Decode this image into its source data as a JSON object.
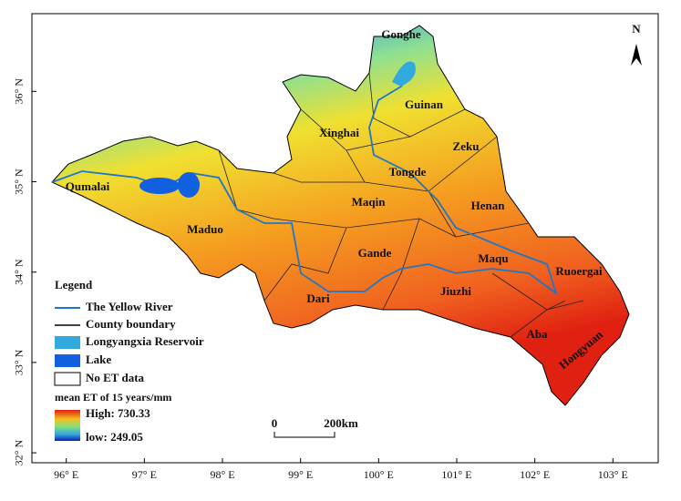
{
  "map": {
    "north": "N",
    "xlim": [
      95.56,
      103.58
    ],
    "ylim": [
      31.89,
      36.86
    ],
    "lon_ticks": [
      {
        "value": 96,
        "label": "96° E"
      },
      {
        "value": 97,
        "label": "97° E"
      },
      {
        "value": 98,
        "label": "98° E"
      },
      {
        "value": 99,
        "label": "99° E"
      },
      {
        "value": 100,
        "label": "100° E"
      },
      {
        "value": 101,
        "label": "101° E"
      },
      {
        "value": 102,
        "label": "102° E"
      },
      {
        "value": 103,
        "label": "103° E"
      }
    ],
    "lat_ticks": [
      {
        "value": 32,
        "label": "32° N"
      },
      {
        "value": 33,
        "label": "33° N"
      },
      {
        "value": 34,
        "label": "34° N"
      },
      {
        "value": 35,
        "label": "35° N"
      },
      {
        "value": 36,
        "label": "36° N"
      }
    ],
    "counties": [
      "Gonghe",
      "Guinan",
      "Xinghai",
      "Zeku",
      "Tongde",
      "Qumalai",
      "Maqin",
      "Henan",
      "Maduo",
      "Gande",
      "Maqu",
      "Ruoergai",
      "Dari",
      "Jiuzhi",
      "Aba",
      "Hongyuan"
    ],
    "legend": {
      "title": "Legend",
      "items": [
        "The Yellow River",
        "County boundary",
        "Longyangxia Reservoir",
        "Lake",
        "No ET data"
      ],
      "ramp_title": "mean ET of 15 years/mm",
      "high": "High: 730.33",
      "low": "low: 249.05"
    },
    "scale_bar": {
      "start": "0",
      "end": "200km"
    }
  }
}
